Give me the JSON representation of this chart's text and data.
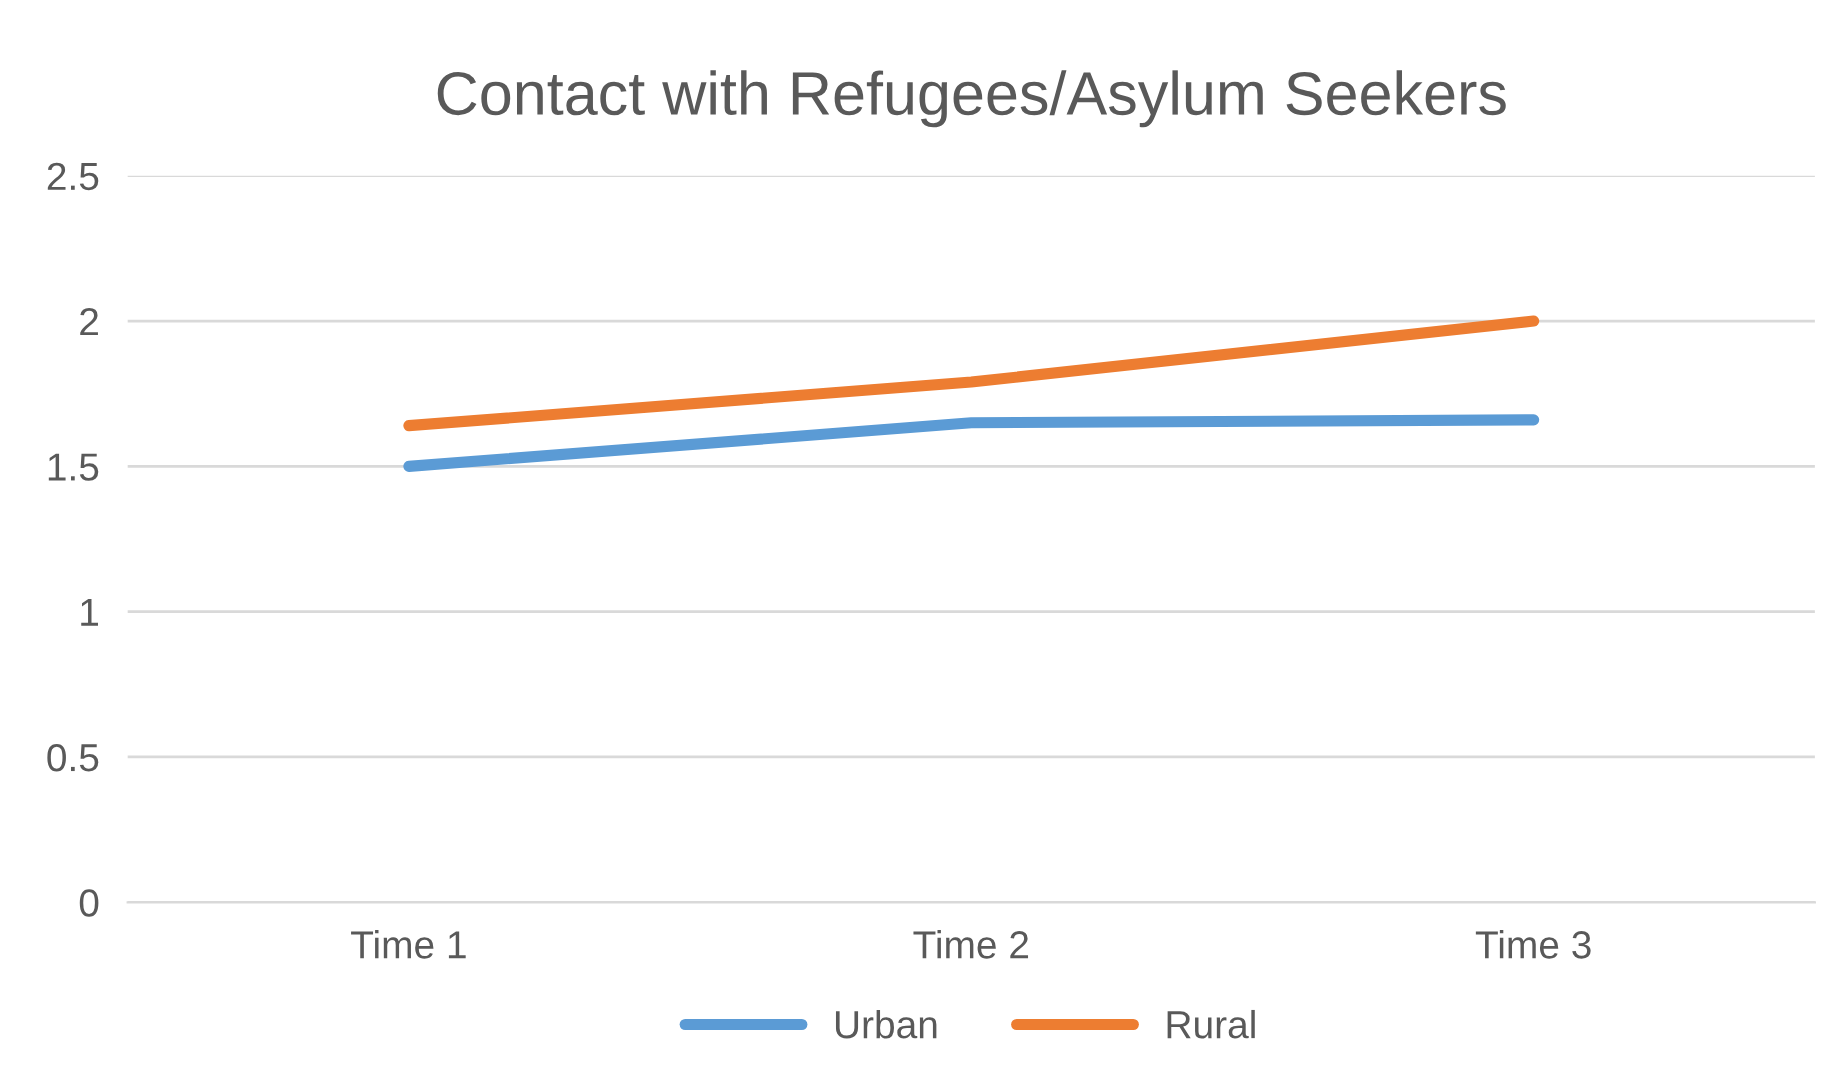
{
  "chart_data": {
    "type": "line",
    "title": "Contact with Refugees/Asylum Seekers",
    "categories": [
      "Time 1",
      "Time 2",
      "Time 3"
    ],
    "series": [
      {
        "name": "Urban",
        "color": "#5b9bd5",
        "values": [
          1.5,
          1.65,
          1.66
        ]
      },
      {
        "name": "Rural",
        "color": "#ed7d31",
        "values": [
          1.64,
          1.79,
          2.0
        ]
      }
    ],
    "ylim": [
      0,
      2.5
    ],
    "yticks": [
      0,
      0.5,
      1,
      1.5,
      2,
      2.5
    ],
    "grid": "y",
    "legend": "bottom",
    "marker": "none",
    "line_style": "solid"
  }
}
